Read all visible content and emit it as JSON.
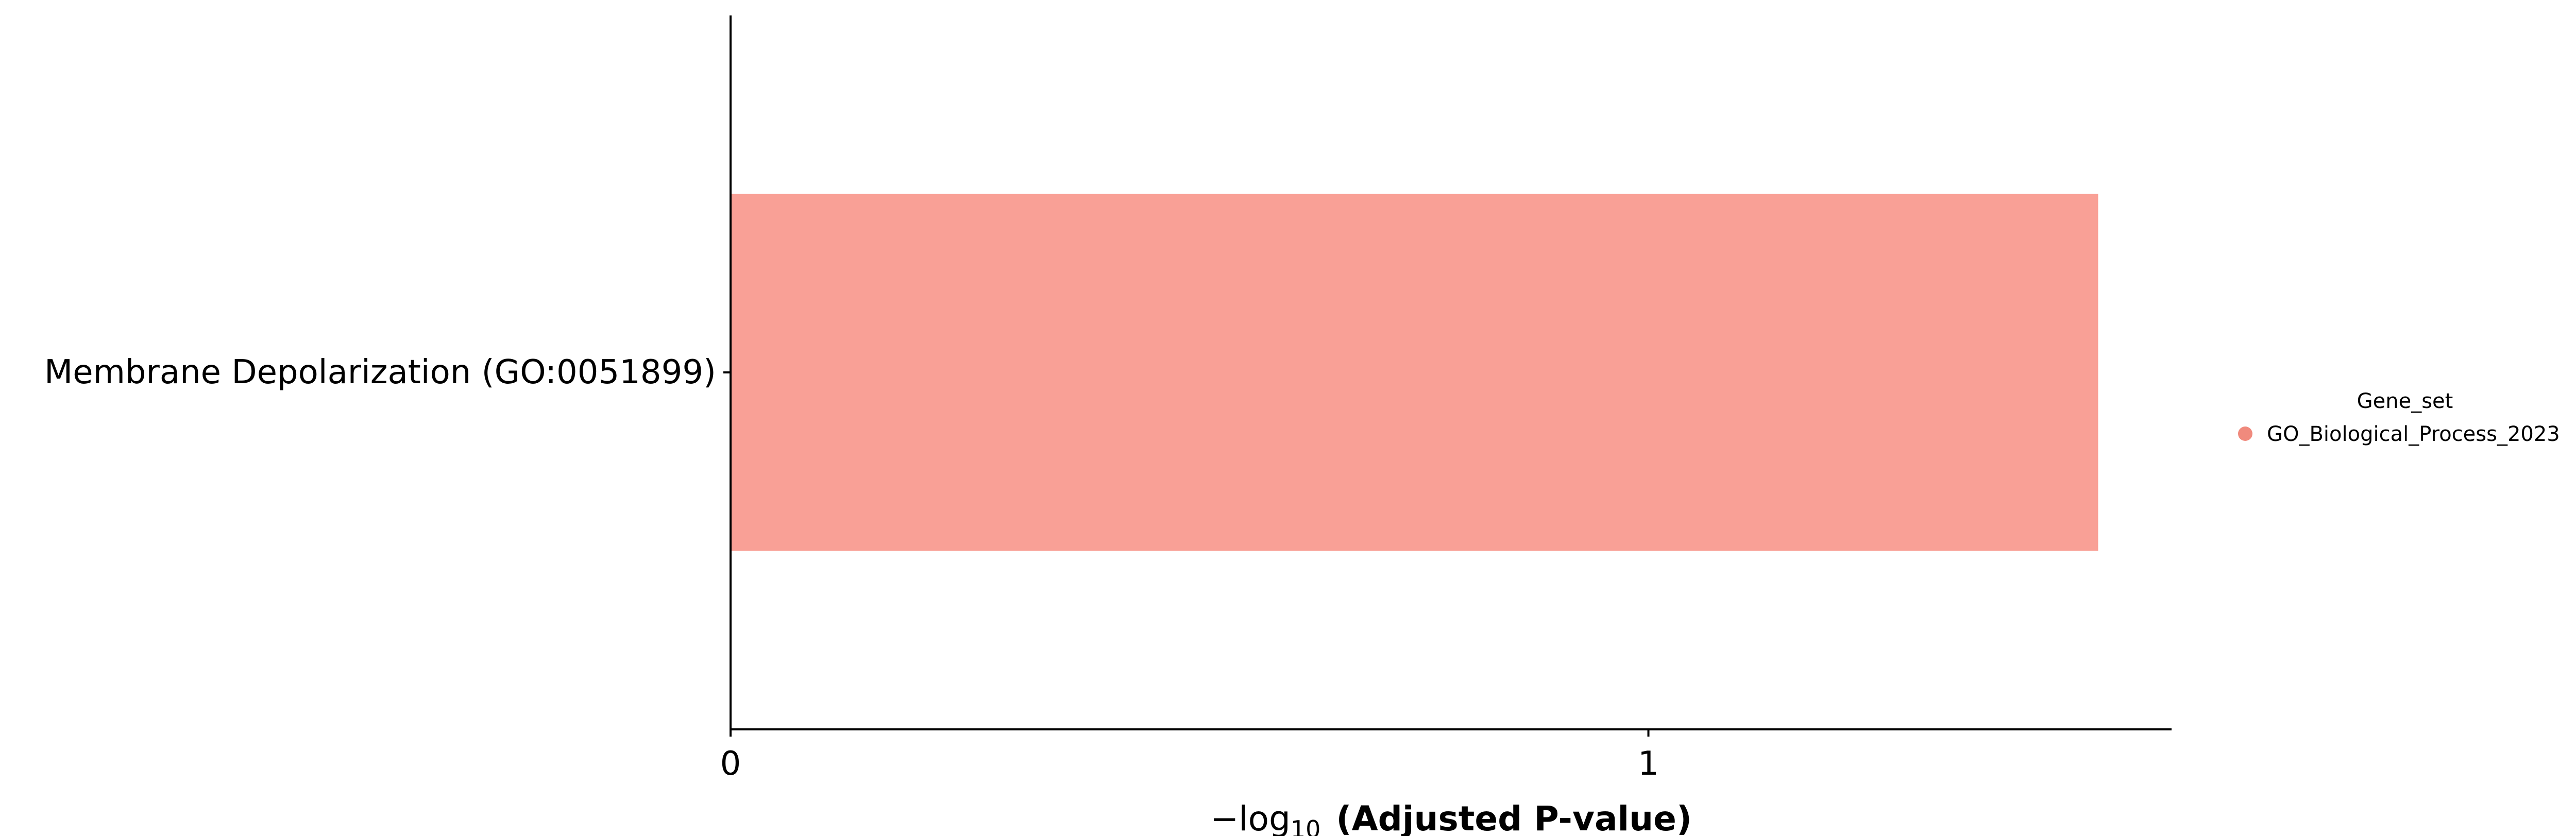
{
  "chart_data": {
    "type": "bar",
    "orientation": "horizontal",
    "categories": [
      "Membrane Depolarization (GO:0051899)"
    ],
    "series": [
      {
        "name": "GO_Biological_Process_2023",
        "values": [
          1.49
        ],
        "color": "#f9a096"
      }
    ],
    "xlabel": {
      "prefix": "−log",
      "subscript": "10",
      "bold": "(Adjusted P-value)"
    },
    "xlim": [
      0,
      1.57
    ],
    "xticks": [
      {
        "value": 0,
        "label": "0"
      },
      {
        "value": 1,
        "label": "1"
      }
    ],
    "grid": false,
    "legend": {
      "title": "Gene_set",
      "placement": "right",
      "marker_color": "#f08a7d",
      "entries": [
        "GO_Biological_Process_2023"
      ]
    }
  }
}
